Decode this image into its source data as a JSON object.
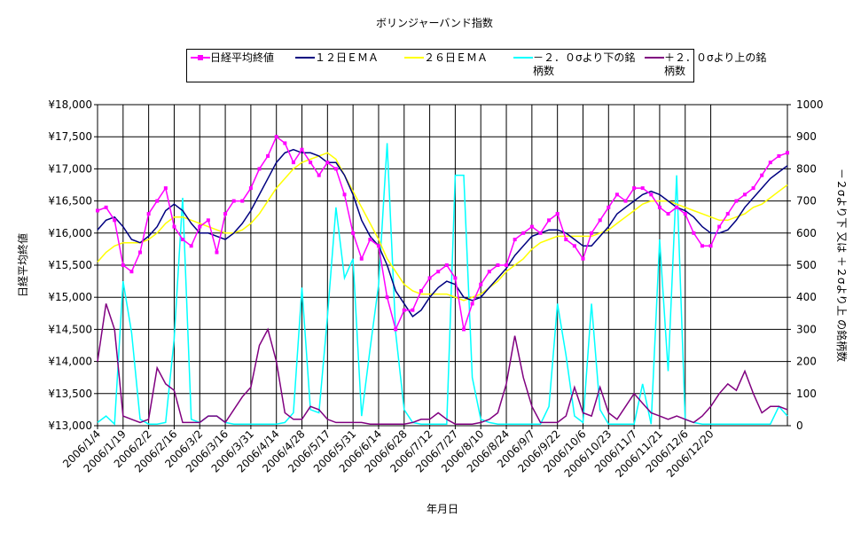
{
  "chart_data": {
    "type": "line",
    "title": "ボリンジャーバンド指数",
    "x_label": "年月日",
    "y_label": "日経平均終値",
    "y2_label": "－２σより下 又は ＋２σより上 の銘柄数",
    "grid": true,
    "categories": [
      "2006/1/4",
      null,
      null,
      "2006/1/19",
      null,
      null,
      "2006/2/2",
      null,
      null,
      "2006/2/16",
      null,
      null,
      "2006/3/2",
      null,
      null,
      "2006/3/16",
      null,
      null,
      "2006/3/31",
      null,
      null,
      "2006/4/14",
      null,
      null,
      "2006/4/28",
      null,
      null,
      "2006/5/17",
      null,
      null,
      "2006/5/31",
      null,
      null,
      "2006/6/14",
      null,
      null,
      "2006/6/28",
      null,
      null,
      "2006/7/12",
      null,
      null,
      "2006/7/27",
      null,
      null,
      "2006/8/10",
      null,
      null,
      "2006/8/24",
      null,
      null,
      "2006/9/7",
      null,
      null,
      "2006/9/22",
      null,
      null,
      "2006/10/6",
      null,
      null,
      "2006/10/23",
      null,
      null,
      "2006/11/7",
      null,
      null,
      "2006/11/21",
      null,
      null,
      "2006/12/6",
      null,
      null,
      "2006/12/20",
      null,
      null,
      null,
      null,
      null,
      null,
      null,
      null,
      null
    ],
    "ylim": [
      13000,
      18000
    ],
    "yticks": [
      {
        "value": 13000,
        "label": "¥13,000"
      },
      {
        "value": 13500,
        "label": "¥13,500"
      },
      {
        "value": 14000,
        "label": "¥14,000"
      },
      {
        "value": 14500,
        "label": "¥14,500"
      },
      {
        "value": 15000,
        "label": "¥15,000"
      },
      {
        "value": 15500,
        "label": "¥15,500"
      },
      {
        "value": 16000,
        "label": "¥16,000"
      },
      {
        "value": 16500,
        "label": "¥16,500"
      },
      {
        "value": 17000,
        "label": "¥17,000"
      },
      {
        "value": 17500,
        "label": "¥17,500"
      },
      {
        "value": 18000,
        "label": "¥18,000"
      }
    ],
    "y2lim": [
      0,
      1000
    ],
    "y2ticks": [
      0,
      100,
      200,
      300,
      400,
      500,
      600,
      700,
      800,
      900,
      1000
    ],
    "series": [
      {
        "name": "日経平均終値",
        "color": "#ff00ff",
        "marker": "square",
        "values": [
          16350,
          16400,
          16200,
          15500,
          15400,
          15700,
          16300,
          16500,
          16700,
          16100,
          15900,
          15800,
          16100,
          16200,
          15700,
          16300,
          16500,
          16500,
          16700,
          17000,
          17200,
          17500,
          17400,
          17100,
          17300,
          17100,
          16900,
          17100,
          17000,
          16600,
          16000,
          15600,
          15900,
          15800,
          15000,
          14500,
          14800,
          14800,
          15100,
          15300,
          15400,
          15500,
          15300,
          14500,
          14900,
          15200,
          15400,
          15500,
          15500,
          15900,
          16000,
          16100,
          16000,
          16200,
          16300,
          15900,
          15800,
          15600,
          16000,
          16200,
          16400,
          16600,
          16500,
          16700,
          16700,
          16600,
          16400,
          16300,
          16400,
          16300,
          16000,
          15800,
          15800,
          16100,
          16300,
          16500,
          16600,
          16700,
          16900,
          17100,
          17200,
          17250
        ]
      },
      {
        "name": "１２日ＥＭＡ",
        "color": "#000080",
        "values": [
          16050,
          16200,
          16250,
          16100,
          15900,
          15850,
          15950,
          16100,
          16350,
          16450,
          16350,
          16150,
          16000,
          16000,
          15950,
          15900,
          16000,
          16150,
          16350,
          16600,
          16850,
          17100,
          17250,
          17300,
          17250,
          17250,
          17200,
          17100,
          17100,
          16900,
          16600,
          16200,
          15950,
          15800,
          15500,
          15100,
          14900,
          14700,
          14800,
          15000,
          15150,
          15250,
          15200,
          15000,
          14950,
          15000,
          15150,
          15300,
          15450,
          15650,
          15800,
          15950,
          16000,
          16050,
          16050,
          16000,
          15900,
          15800,
          15800,
          15950,
          16100,
          16300,
          16400,
          16500,
          16600,
          16650,
          16600,
          16500,
          16400,
          16350,
          16250,
          16100,
          16000,
          16000,
          16050,
          16200,
          16400,
          16550,
          16700,
          16850,
          16950,
          17050
        ]
      },
      {
        "name": "２６日ＥＭＡ",
        "color": "#ffff00",
        "values": [
          15550,
          15700,
          15800,
          15850,
          15850,
          15850,
          15900,
          16000,
          16150,
          16250,
          16250,
          16200,
          16150,
          16100,
          16050,
          16000,
          16000,
          16050,
          16150,
          16300,
          16500,
          16700,
          16850,
          17000,
          17100,
          17150,
          17200,
          17250,
          17150,
          16900,
          16650,
          16400,
          16150,
          15900,
          15600,
          15400,
          15200,
          15100,
          15050,
          15050,
          15050,
          15050,
          15000,
          14950,
          15000,
          15050,
          15150,
          15250,
          15400,
          15500,
          15600,
          15750,
          15850,
          15900,
          15950,
          15950,
          15950,
          15950,
          15950,
          16000,
          16050,
          16150,
          16250,
          16350,
          16450,
          16500,
          16500,
          16500,
          16450,
          16400,
          16350,
          16300,
          16250,
          16200,
          16200,
          16250,
          16300,
          16400,
          16450,
          16550,
          16650,
          16750
        ]
      },
      {
        "name": "－２．０σより下の銘柄数",
        "color": "#00ffff",
        "axis": "y2",
        "values": [
          10,
          30,
          5,
          450,
          290,
          20,
          5,
          5,
          10,
          270,
          710,
          20,
          10,
          30,
          30,
          10,
          5,
          5,
          5,
          5,
          5,
          5,
          10,
          40,
          430,
          50,
          40,
          340,
          680,
          460,
          520,
          30,
          240,
          440,
          880,
          290,
          50,
          10,
          5,
          5,
          5,
          5,
          780,
          780,
          150,
          20,
          10,
          5,
          5,
          5,
          5,
          5,
          5,
          60,
          380,
          220,
          30,
          10,
          380,
          50,
          5,
          5,
          5,
          5,
          130,
          5,
          580,
          170,
          780,
          20,
          10,
          5,
          5,
          5,
          5,
          5,
          5,
          5,
          5,
          5,
          60,
          30
        ]
      },
      {
        "name": "＋２．０σより上の銘柄数",
        "color": "#800080",
        "axis": "y2",
        "values": [
          200,
          380,
          300,
          30,
          20,
          10,
          20,
          180,
          130,
          110,
          10,
          10,
          10,
          30,
          30,
          10,
          50,
          90,
          120,
          250,
          300,
          200,
          40,
          20,
          20,
          60,
          50,
          20,
          10,
          10,
          10,
          10,
          5,
          5,
          5,
          5,
          5,
          10,
          20,
          20,
          40,
          20,
          5,
          5,
          5,
          10,
          20,
          40,
          130,
          280,
          150,
          60,
          10,
          10,
          10,
          30,
          120,
          40,
          30,
          120,
          40,
          20,
          60,
          100,
          70,
          40,
          30,
          20,
          30,
          20,
          10,
          30,
          60,
          100,
          130,
          110,
          170,
          100,
          40,
          60,
          60,
          50
        ]
      }
    ]
  }
}
